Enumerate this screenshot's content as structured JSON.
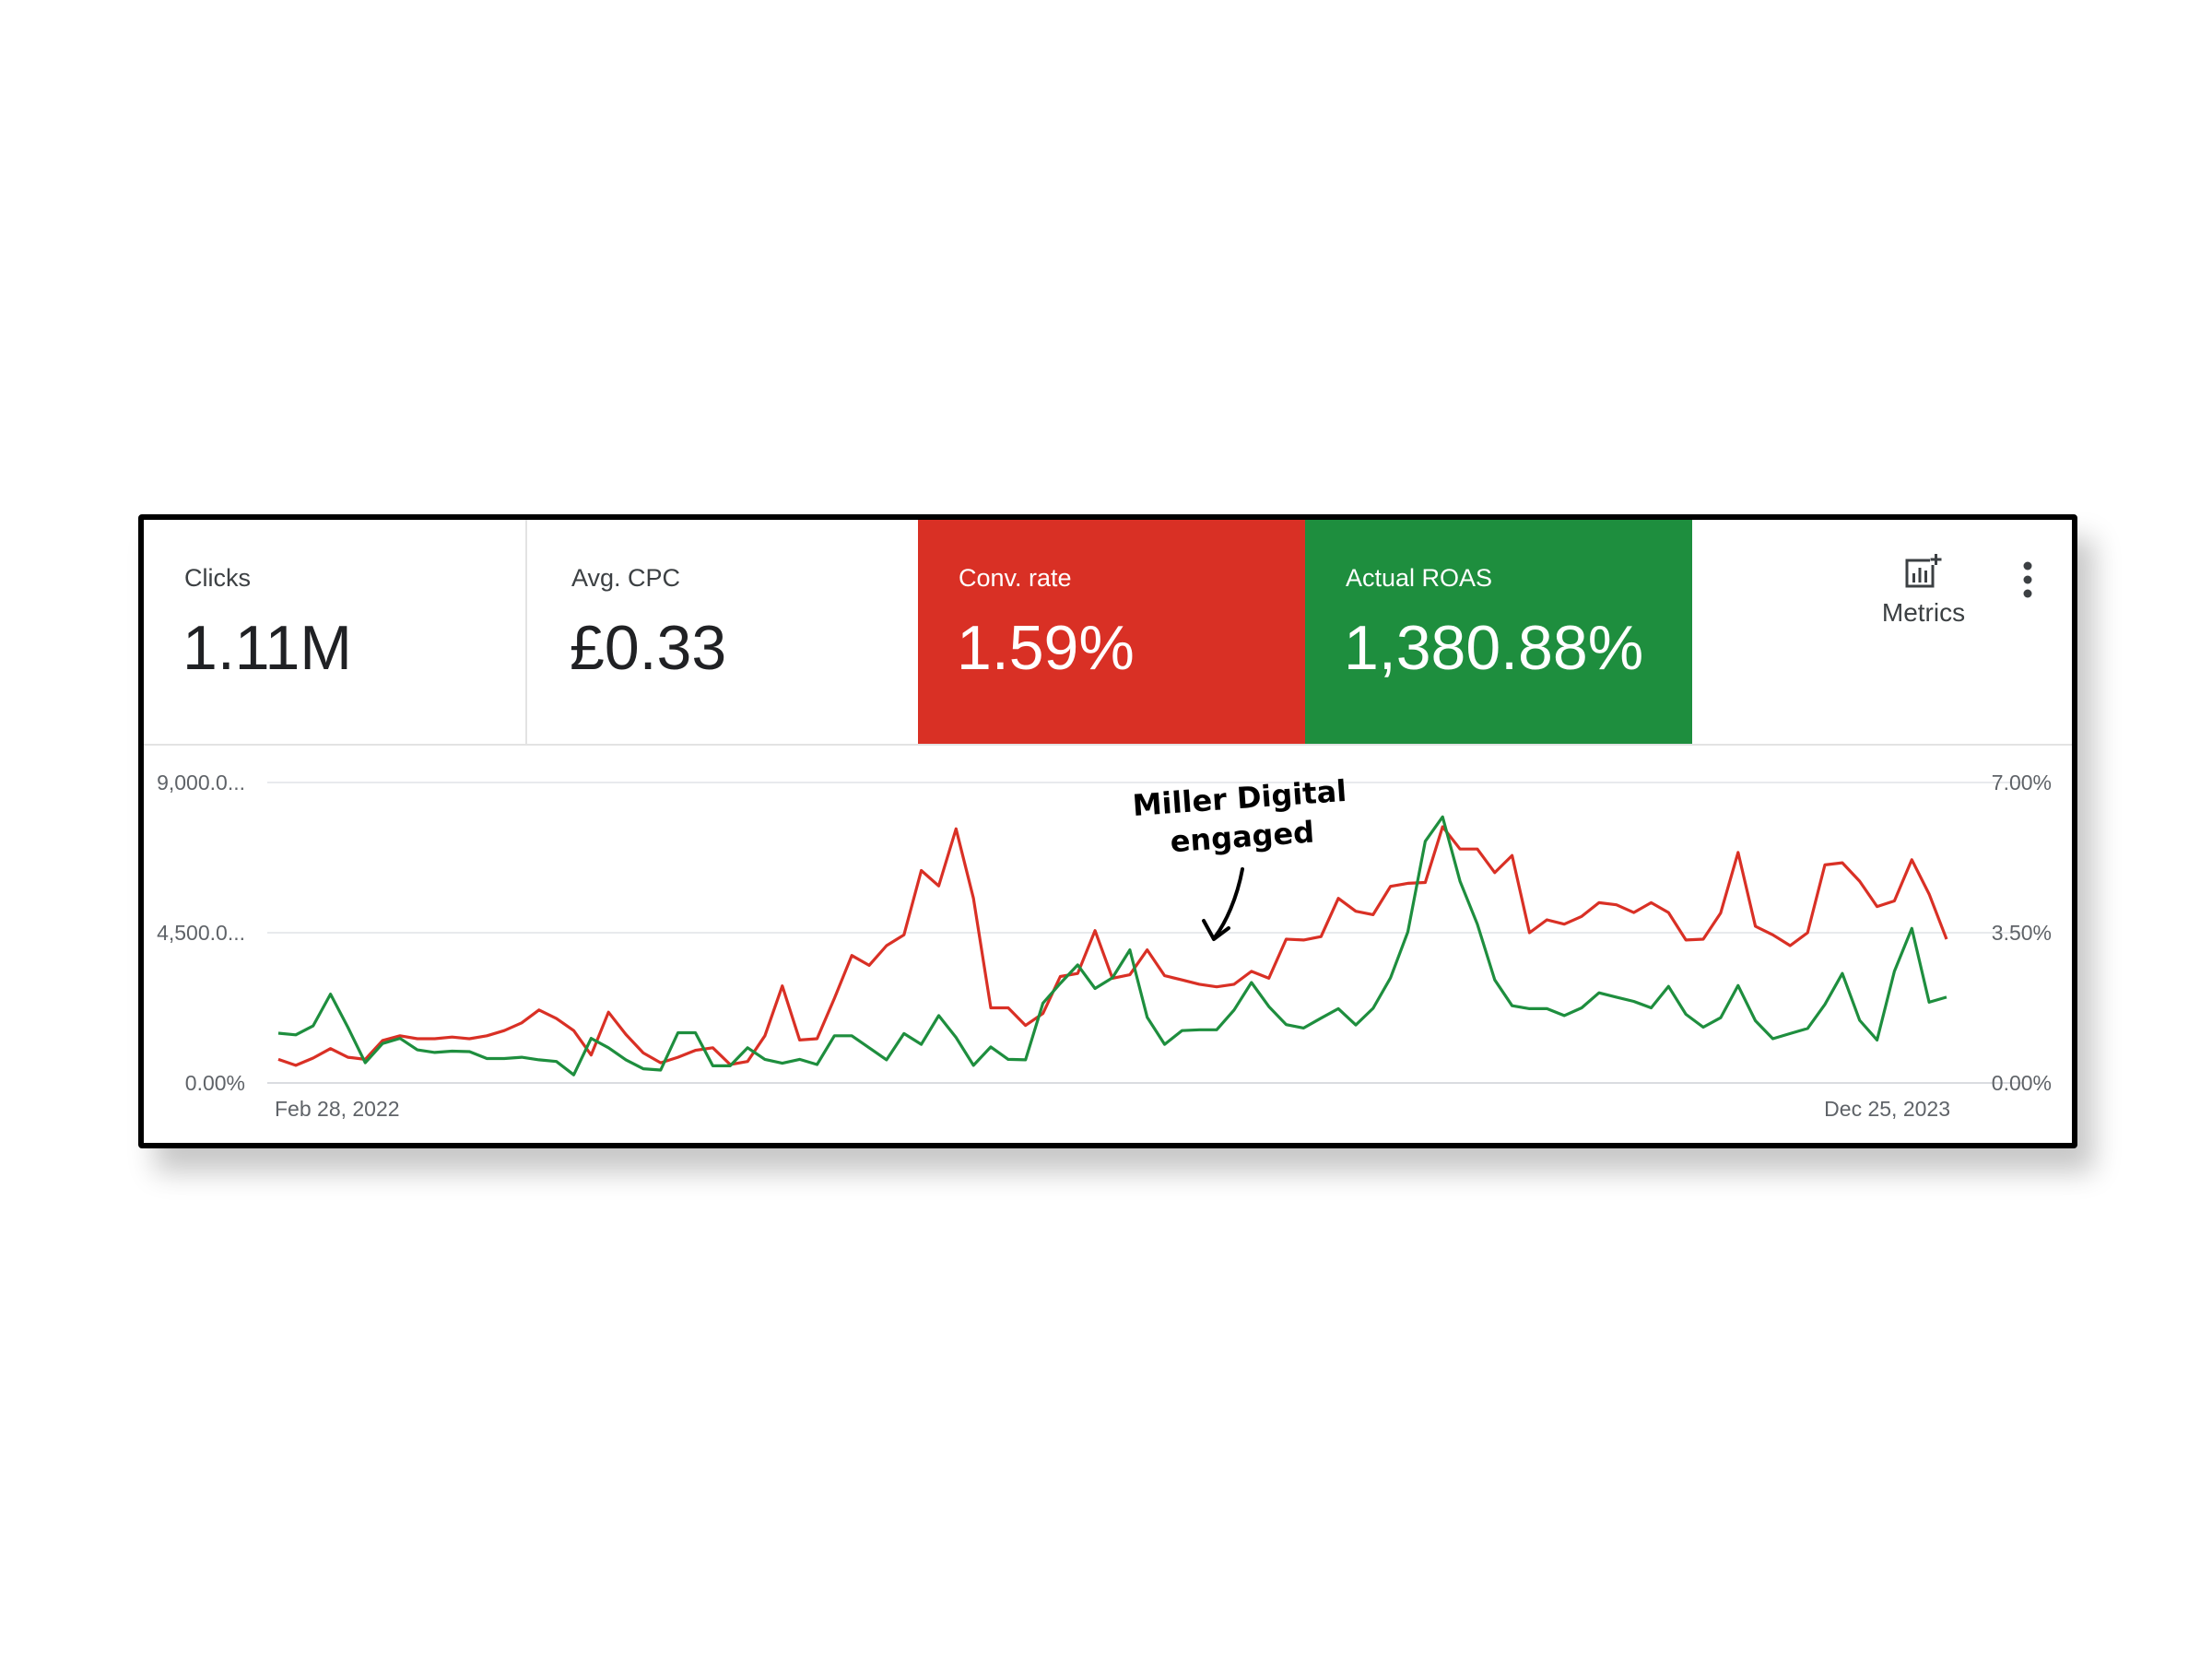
{
  "scorecards": [
    {
      "label": "Clicks",
      "value": "1.11M"
    },
    {
      "label": "Avg. CPC",
      "value": "£0.33"
    },
    {
      "label": "Conv. rate",
      "value": "1.59%"
    },
    {
      "label": "Actual ROAS",
      "value": "1,380.88%"
    }
  ],
  "toolbar": {
    "metrics_label": "Metrics",
    "metrics_icon": "bar-chart-add-icon",
    "more_icon": "more-vertical-icon"
  },
  "colors": {
    "conv_rate": "#d93025",
    "roas": "#1e8e3e"
  },
  "annotation": {
    "line1": "Miller Digital",
    "line2": "engaged"
  },
  "chart_data": {
    "type": "line",
    "x_start_label": "Feb 28, 2022",
    "x_end_label": "Dec 25, 2023",
    "left_axis": {
      "ticks": [
        "9,000.0...",
        "4,500.0...",
        "0.00%"
      ],
      "range": [
        0,
        9000
      ]
    },
    "right_axis": {
      "ticks": [
        "7.00%",
        "3.50%",
        "0.00%"
      ],
      "range": [
        0,
        7
      ]
    },
    "grid": true,
    "series": [
      {
        "axis": "right",
        "color": "#d93025",
        "values": [
          0.55,
          0.41,
          0.58,
          0.8,
          0.6,
          0.55,
          0.99,
          1.1,
          1.03,
          1.03,
          1.07,
          1.03,
          1.1,
          1.22,
          1.4,
          1.7,
          1.5,
          1.22,
          0.65,
          1.65,
          1.13,
          0.7,
          0.47,
          0.6,
          0.76,
          0.82,
          0.43,
          0.5,
          1.1,
          2.26,
          1.0,
          1.03,
          1.97,
          2.97,
          2.74,
          3.2,
          3.45,
          4.95,
          4.59,
          5.92,
          4.3,
          1.75,
          1.75,
          1.34,
          1.62,
          2.48,
          2.55,
          3.55,
          2.44,
          2.52,
          3.1,
          2.5,
          2.4,
          2.3,
          2.24,
          2.3,
          2.6,
          2.44,
          3.35,
          3.33,
          3.41,
          4.3,
          4.0,
          3.92,
          4.58,
          4.65,
          4.67,
          5.97,
          5.45,
          5.45,
          4.9,
          5.3,
          3.5,
          3.8,
          3.7,
          3.88,
          4.2,
          4.15,
          3.97,
          4.2,
          3.97,
          3.33,
          3.35,
          3.96,
          5.37,
          3.65,
          3.45,
          3.2,
          3.5,
          5.08,
          5.13,
          4.7,
          4.11,
          4.24,
          5.2,
          4.4,
          3.35
        ]
      },
      {
        "axis": "right",
        "color": "#1e8e3e",
        "values": [
          1.16,
          1.12,
          1.33,
          2.07,
          1.3,
          0.47,
          0.92,
          1.04,
          0.77,
          0.71,
          0.74,
          0.73,
          0.57,
          0.57,
          0.6,
          0.54,
          0.5,
          0.19,
          1.04,
          0.82,
          0.54,
          0.33,
          0.3,
          1.17,
          1.17,
          0.4,
          0.4,
          0.82,
          0.55,
          0.46,
          0.55,
          0.43,
          1.1,
          1.1,
          0.82,
          0.54,
          1.15,
          0.9,
          1.57,
          1.06,
          0.41,
          0.84,
          0.55,
          0.54,
          1.86,
          2.32,
          2.75,
          2.2,
          2.45,
          3.1,
          1.53,
          0.9,
          1.22,
          1.24,
          1.24,
          1.7,
          2.34,
          1.78,
          1.36,
          1.28,
          1.51,
          1.73,
          1.35,
          1.74,
          2.45,
          3.52,
          5.63,
          6.2,
          4.7,
          3.7,
          2.4,
          1.8,
          1.73,
          1.73,
          1.57,
          1.75,
          2.1,
          2.0,
          1.9,
          1.75,
          2.25,
          1.6,
          1.3,
          1.52,
          2.27,
          1.45,
          1.03,
          1.15,
          1.27,
          1.83,
          2.55,
          1.46,
          1.0,
          2.6,
          3.6,
          1.88,
          2.0
        ]
      }
    ]
  }
}
